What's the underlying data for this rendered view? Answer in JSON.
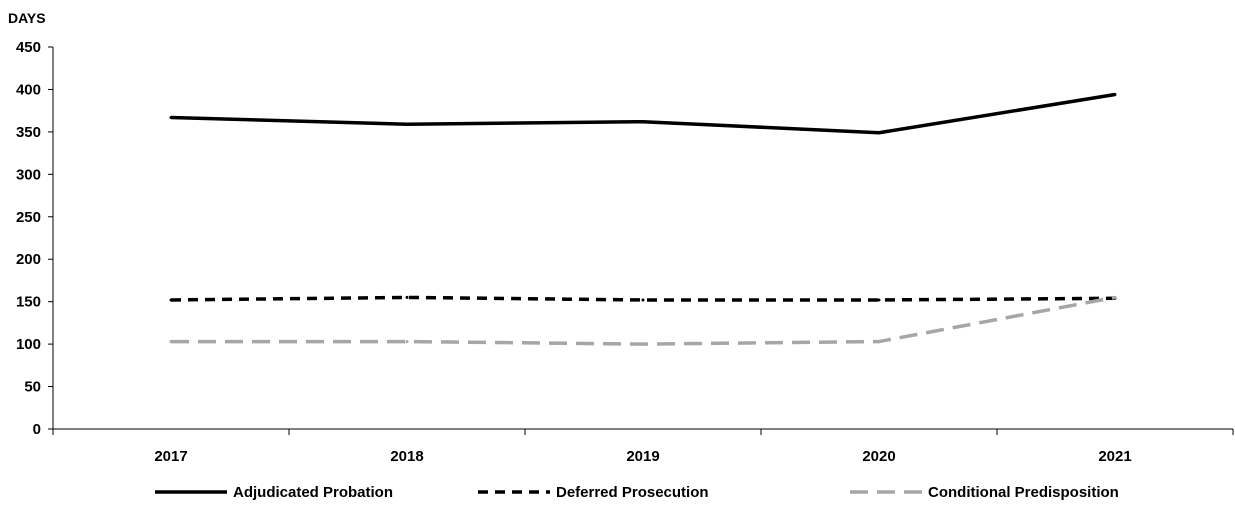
{
  "chart_data": {
    "type": "line",
    "unit_label": "DAYS",
    "title": "",
    "xlabel": "",
    "ylabel": "DAYS",
    "categories": [
      "2017",
      "2018",
      "2019",
      "2020",
      "2021"
    ],
    "ylim": [
      0,
      450
    ],
    "y_ticks": [
      0,
      50,
      100,
      150,
      200,
      250,
      300,
      350,
      400,
      450
    ],
    "grid": false,
    "legend_position": "bottom",
    "series": [
      {
        "name": "Adjudicated Probation",
        "values": [
          367,
          359,
          362,
          349,
          394
        ],
        "color": "#000000",
        "dash": "solid"
      },
      {
        "name": "Deferred Prosecution",
        "values": [
          152,
          155,
          152,
          152,
          154
        ],
        "color": "#000000",
        "dash": "dashed"
      },
      {
        "name": "Conditional Predisposition",
        "values": [
          103,
          103,
          100,
          103,
          155
        ],
        "color": "#a6a6a6",
        "dash": "long-dashed"
      }
    ]
  }
}
